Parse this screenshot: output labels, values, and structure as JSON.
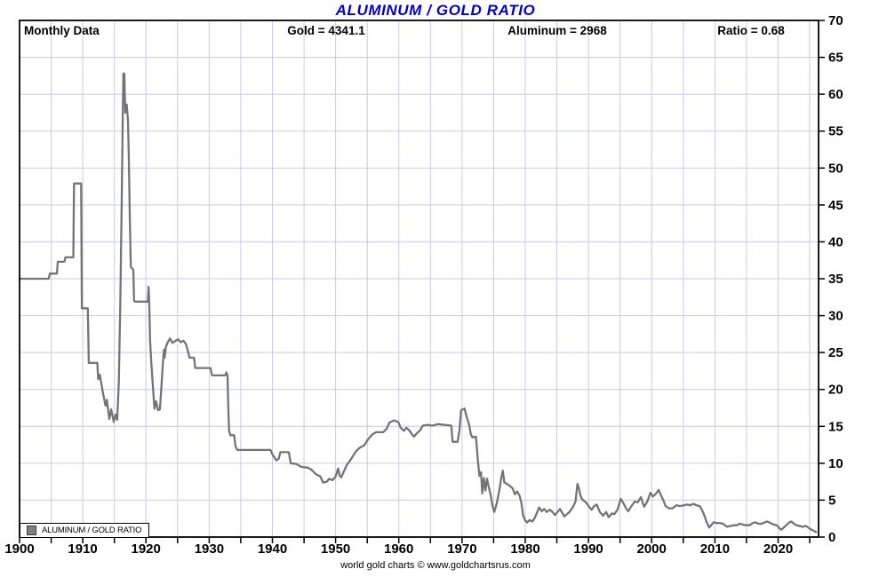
{
  "title": "ALUMINUM / GOLD RATIO",
  "header": {
    "frequency": "Monthly Data",
    "gold": "Gold = 4341.1",
    "aluminum": "Aluminum = 2968",
    "ratio": "Ratio = 0.68"
  },
  "legend": {
    "swatch": "gray-square",
    "label": "ALUMINUM / GOLD RATIO"
  },
  "caption": "world gold charts © www.goldchartsrus.com",
  "colors": {
    "title": "#0000cc",
    "line": "#747474",
    "grid": "#c9c9ec",
    "axis": "#000000",
    "background": "#ffffff"
  },
  "chart_data": {
    "type": "line",
    "title": "ALUMINUM / GOLD RATIO",
    "xlabel": "",
    "ylabel": "",
    "xlim": [
      1900,
      2026.4
    ],
    "ylim": [
      0,
      70
    ],
    "x_labeled_ticks": [
      1900,
      1910,
      1920,
      1930,
      1940,
      1950,
      1960,
      1970,
      1980,
      1990,
      2000,
      2010,
      2020
    ],
    "x_minor_step": 5,
    "y_tick_step": 5,
    "grid": true,
    "y_axis_side": "right",
    "legend_position": "bottom-left",
    "series": [
      {
        "name": "ALUMINUM / GOLD RATIO",
        "points": [
          [
            1900,
            35
          ],
          [
            1904.6,
            35
          ],
          [
            1904.8,
            35.7
          ],
          [
            1905.9,
            35.7
          ],
          [
            1906.05,
            37.3
          ],
          [
            1907.1,
            37.3
          ],
          [
            1907.25,
            37.9
          ],
          [
            1908.5,
            37.9
          ],
          [
            1908.62,
            47.9
          ],
          [
            1909.75,
            47.9
          ],
          [
            1909.85,
            31
          ],
          [
            1910.8,
            31
          ],
          [
            1910.95,
            23.6
          ],
          [
            1912.3,
            23.6
          ],
          [
            1912.45,
            21.4
          ],
          [
            1912.7,
            22
          ],
          [
            1913.2,
            19.5
          ],
          [
            1913.6,
            17.8
          ],
          [
            1913.8,
            18.6
          ],
          [
            1914.2,
            16
          ],
          [
            1914.5,
            17.3
          ],
          [
            1914.9,
            15.6
          ],
          [
            1915.2,
            16.6
          ],
          [
            1915.45,
            15.9
          ],
          [
            1915.7,
            21
          ],
          [
            1915.95,
            32
          ],
          [
            1916.15,
            45
          ],
          [
            1916.3,
            55
          ],
          [
            1916.42,
            62.8
          ],
          [
            1916.58,
            62.8
          ],
          [
            1916.72,
            57.5
          ],
          [
            1916.95,
            58.6
          ],
          [
            1917.15,
            56.4
          ],
          [
            1917.3,
            51
          ],
          [
            1917.45,
            43
          ],
          [
            1917.6,
            36.6
          ],
          [
            1918,
            36.2
          ],
          [
            1918.12,
            32
          ],
          [
            1918.3,
            31.9
          ],
          [
            1920.3,
            31.9
          ],
          [
            1920.42,
            33.9
          ],
          [
            1920.52,
            31.8
          ],
          [
            1920.65,
            26.5
          ],
          [
            1920.85,
            23.5
          ],
          [
            1921.05,
            21
          ],
          [
            1921.35,
            17.4
          ],
          [
            1921.6,
            18.4
          ],
          [
            1921.9,
            17.2
          ],
          [
            1922.2,
            17.3
          ],
          [
            1922.45,
            20.5
          ],
          [
            1922.7,
            24
          ],
          [
            1922.85,
            25.4
          ],
          [
            1922.95,
            24.3
          ],
          [
            1923.15,
            25.8
          ],
          [
            1923.45,
            26.4
          ],
          [
            1923.8,
            26.9
          ],
          [
            1924.2,
            26.3
          ],
          [
            1924.7,
            26.6
          ],
          [
            1925.1,
            26.8
          ],
          [
            1925.5,
            26.4
          ],
          [
            1925.9,
            26.6
          ],
          [
            1926.3,
            26.2
          ],
          [
            1926.6,
            25.3
          ],
          [
            1926.9,
            24.3
          ],
          [
            1927.6,
            24.3
          ],
          [
            1927.8,
            22.9
          ],
          [
            1930.2,
            22.9
          ],
          [
            1930.45,
            21.9
          ],
          [
            1932.55,
            21.9
          ],
          [
            1932.7,
            22.3
          ],
          [
            1932.9,
            21.9
          ],
          [
            1933.05,
            16.5
          ],
          [
            1933.15,
            14.4
          ],
          [
            1933.35,
            13.8
          ],
          [
            1933.95,
            13.8
          ],
          [
            1934.15,
            12.3
          ],
          [
            1934.45,
            11.8
          ],
          [
            1939.7,
            11.8
          ],
          [
            1940,
            11.2
          ],
          [
            1940.6,
            10.4
          ],
          [
            1941,
            10.6
          ],
          [
            1941.25,
            11.5
          ],
          [
            1942.6,
            11.5
          ],
          [
            1942.9,
            10
          ],
          [
            1943.8,
            9.9
          ],
          [
            1944.6,
            9.5
          ],
          [
            1945.6,
            9.4
          ],
          [
            1946.2,
            9.1
          ],
          [
            1946.9,
            8.5
          ],
          [
            1947.6,
            8.2
          ],
          [
            1948,
            7.4
          ],
          [
            1948.6,
            7.5
          ],
          [
            1949,
            7.9
          ],
          [
            1949.5,
            7.7
          ],
          [
            1950,
            8.2
          ],
          [
            1950.4,
            9.3
          ],
          [
            1950.65,
            8.3
          ],
          [
            1950.9,
            8.1
          ],
          [
            1951.3,
            8.9
          ],
          [
            1951.8,
            9.8
          ],
          [
            1952.4,
            10.5
          ],
          [
            1953.2,
            11.6
          ],
          [
            1953.8,
            12.1
          ],
          [
            1954.5,
            12.4
          ],
          [
            1955.1,
            13.2
          ],
          [
            1955.8,
            13.9
          ],
          [
            1956.4,
            14.2
          ],
          [
            1957.5,
            14.2
          ],
          [
            1958.1,
            14.7
          ],
          [
            1958.5,
            15.5
          ],
          [
            1959.2,
            15.8
          ],
          [
            1959.9,
            15.6
          ],
          [
            1960.3,
            14.8
          ],
          [
            1960.8,
            14.4
          ],
          [
            1961.2,
            14.8
          ],
          [
            1961.7,
            14.4
          ],
          [
            1962.1,
            13.9
          ],
          [
            1962.4,
            13.6
          ],
          [
            1962.9,
            14.1
          ],
          [
            1963.3,
            14.4
          ],
          [
            1963.8,
            15.1
          ],
          [
            1964.5,
            15.2
          ],
          [
            1965.3,
            15.1
          ],
          [
            1966.2,
            15.3
          ],
          [
            1967.2,
            15.2
          ],
          [
            1968.3,
            15.1
          ],
          [
            1968.5,
            12.9
          ],
          [
            1969.3,
            12.9
          ],
          [
            1969.6,
            14.5
          ],
          [
            1969.85,
            17.2
          ],
          [
            1970.4,
            17.4
          ],
          [
            1970.75,
            16.2
          ],
          [
            1971.1,
            15.3
          ],
          [
            1971.4,
            13.9
          ],
          [
            1971.65,
            13.5
          ],
          [
            1972.2,
            13.6
          ],
          [
            1972.5,
            10.5
          ],
          [
            1972.75,
            8.3
          ],
          [
            1973,
            8.8
          ],
          [
            1973.2,
            5.9
          ],
          [
            1973.45,
            8
          ],
          [
            1973.7,
            6.3
          ],
          [
            1973.95,
            7.9
          ],
          [
            1974.2,
            6.9
          ],
          [
            1974.5,
            5.8
          ],
          [
            1974.8,
            4.3
          ],
          [
            1975.1,
            3.4
          ],
          [
            1975.5,
            4.6
          ],
          [
            1975.9,
            6.3
          ],
          [
            1976.2,
            8
          ],
          [
            1976.45,
            9
          ],
          [
            1976.7,
            7.4
          ],
          [
            1977.1,
            7.2
          ],
          [
            1977.6,
            6.9
          ],
          [
            1978,
            6.6
          ],
          [
            1978.35,
            5.8
          ],
          [
            1978.7,
            6.2
          ],
          [
            1979.1,
            5.6
          ],
          [
            1979.4,
            4.6
          ],
          [
            1979.65,
            3
          ],
          [
            1979.95,
            2.3
          ],
          [
            1980.3,
            2
          ],
          [
            1980.7,
            2.3
          ],
          [
            1981.1,
            2.1
          ],
          [
            1981.5,
            2.6
          ],
          [
            1981.9,
            3.4
          ],
          [
            1982.2,
            4
          ],
          [
            1982.6,
            3.5
          ],
          [
            1983,
            3.8
          ],
          [
            1983.4,
            3.4
          ],
          [
            1983.9,
            3.7
          ],
          [
            1984.3,
            3.4
          ],
          [
            1984.7,
            3
          ],
          [
            1985.1,
            3.4
          ],
          [
            1985.5,
            3.8
          ],
          [
            1985.9,
            3.2
          ],
          [
            1986.2,
            2.8
          ],
          [
            1986.6,
            3.1
          ],
          [
            1987,
            3.4
          ],
          [
            1987.5,
            4
          ],
          [
            1987.95,
            4.8
          ],
          [
            1988.25,
            7.2
          ],
          [
            1988.5,
            6.6
          ],
          [
            1988.7,
            5.7
          ],
          [
            1988.95,
            5.2
          ],
          [
            1989.3,
            4.9
          ],
          [
            1989.7,
            4.6
          ],
          [
            1990.1,
            4.1
          ],
          [
            1990.5,
            3.7
          ],
          [
            1990.9,
            4.2
          ],
          [
            1991.3,
            4.4
          ],
          [
            1991.8,
            3.4
          ],
          [
            1992.3,
            2.9
          ],
          [
            1992.8,
            3.4
          ],
          [
            1993.2,
            2.7
          ],
          [
            1993.7,
            3.2
          ],
          [
            1994.1,
            3.1
          ],
          [
            1994.6,
            3.7
          ],
          [
            1995.1,
            5.2
          ],
          [
            1995.6,
            4.5
          ],
          [
            1996,
            3.8
          ],
          [
            1996.3,
            3.5
          ],
          [
            1996.8,
            4.2
          ],
          [
            1997.3,
            4.8
          ],
          [
            1997.8,
            4.7
          ],
          [
            1998.3,
            5.4
          ],
          [
            1998.8,
            4.1
          ],
          [
            1999.3,
            4.8
          ],
          [
            1999.8,
            6
          ],
          [
            2000.2,
            5.5
          ],
          [
            2000.7,
            5.9
          ],
          [
            2001.1,
            6.4
          ],
          [
            2001.5,
            5.6
          ],
          [
            2001.9,
            4.9
          ],
          [
            2002.2,
            4.2
          ],
          [
            2002.7,
            3.9
          ],
          [
            2003.3,
            3.9
          ],
          [
            2003.9,
            4.3
          ],
          [
            2004.5,
            4.2
          ],
          [
            2005.1,
            4.3
          ],
          [
            2005.6,
            4.4
          ],
          [
            2006.1,
            4.3
          ],
          [
            2006.6,
            4.5
          ],
          [
            2007.1,
            4.3
          ],
          [
            2007.6,
            4.2
          ],
          [
            2008,
            3.6
          ],
          [
            2008.3,
            3
          ],
          [
            2008.7,
            2
          ],
          [
            2009.1,
            1.3
          ],
          [
            2009.5,
            1.7
          ],
          [
            2009.8,
            2
          ],
          [
            2010.3,
            1.9
          ],
          [
            2010.8,
            1.9
          ],
          [
            2011.3,
            1.8
          ],
          [
            2011.9,
            1.4
          ],
          [
            2012.5,
            1.5
          ],
          [
            2013,
            1.6
          ],
          [
            2013.5,
            1.6
          ],
          [
            2013.9,
            1.8
          ],
          [
            2014.4,
            1.7
          ],
          [
            2014.9,
            1.6
          ],
          [
            2015.5,
            1.6
          ],
          [
            2016,
            1.9
          ],
          [
            2016.4,
            2
          ],
          [
            2016.9,
            1.8
          ],
          [
            2017.4,
            1.8
          ],
          [
            2017.9,
            2
          ],
          [
            2018.3,
            2.1
          ],
          [
            2018.8,
            1.9
          ],
          [
            2019.3,
            1.7
          ],
          [
            2019.8,
            1.6
          ],
          [
            2020.2,
            1.2
          ],
          [
            2020.5,
            1
          ],
          [
            2020.9,
            1.3
          ],
          [
            2021.3,
            1.6
          ],
          [
            2021.8,
            2
          ],
          [
            2022.1,
            2.1
          ],
          [
            2022.5,
            1.8
          ],
          [
            2022.9,
            1.6
          ],
          [
            2023.4,
            1.5
          ],
          [
            2023.9,
            1.4
          ],
          [
            2024.4,
            1.5
          ],
          [
            2024.9,
            1.2
          ],
          [
            2025.3,
            1
          ],
          [
            2025.7,
            0.8
          ],
          [
            2026,
            0.68
          ]
        ]
      }
    ]
  }
}
